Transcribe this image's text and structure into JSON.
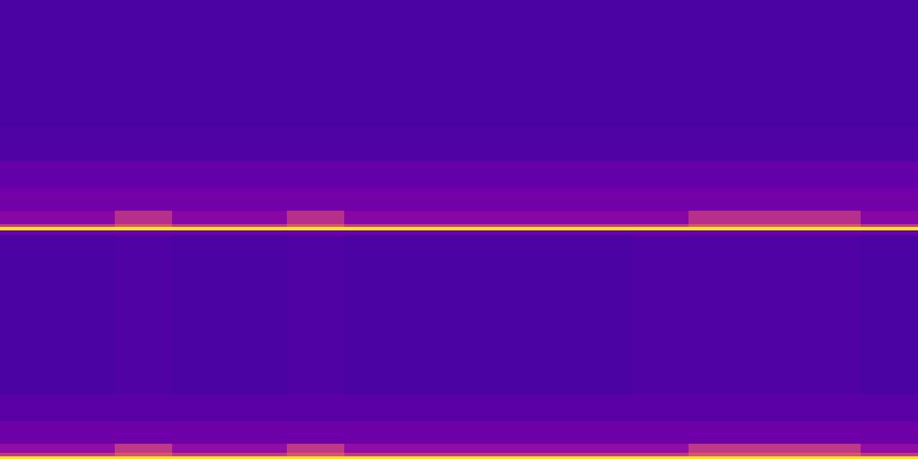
{
  "chart_data": {
    "type": "heatmap",
    "xlim": [
      0,
      1024
    ],
    "ylim": [
      0,
      512
    ],
    "tick_labels": false,
    "color": "plasma",
    "zlim": [
      0,
      1
    ],
    "x_edges": [
      0,
      64,
      128,
      192,
      256,
      320,
      384,
      448,
      512,
      576,
      640,
      704,
      768,
      832,
      896,
      960,
      1024
    ],
    "y_edges": [
      0,
      3,
      7,
      17,
      42,
      72,
      250,
      255,
      259,
      262,
      277,
      302,
      332,
      372,
      512
    ],
    "values": [
      [
        0.95,
        0.95,
        0.95,
        0.95,
        0.95,
        0.95,
        0.95,
        0.95,
        0.95,
        0.95,
        0.95,
        0.95,
        0.95,
        0.95,
        0.95,
        0.95
      ],
      [
        0.45,
        0.45,
        0.55,
        0.45,
        0.45,
        0.55,
        0.45,
        0.45,
        0.45,
        0.45,
        0.45,
        0.45,
        0.55,
        0.55,
        0.55,
        0.45
      ],
      [
        0.3,
        0.3,
        0.45,
        0.3,
        0.3,
        0.45,
        0.3,
        0.3,
        0.3,
        0.3,
        0.3,
        0.3,
        0.45,
        0.45,
        0.45,
        0.3
      ],
      [
        0.21,
        0.21,
        0.21,
        0.21,
        0.21,
        0.21,
        0.21,
        0.21,
        0.21,
        0.21,
        0.21,
        0.21,
        0.21,
        0.21,
        0.21,
        0.21
      ],
      [
        0.16,
        0.16,
        0.16,
        0.16,
        0.16,
        0.16,
        0.16,
        0.16,
        0.16,
        0.16,
        0.16,
        0.16,
        0.16,
        0.16,
        0.16,
        0.16
      ],
      [
        0.12,
        0.12,
        0.14,
        0.12,
        0.12,
        0.14,
        0.12,
        0.12,
        0.12,
        0.12,
        0.12,
        0.14,
        0.14,
        0.14,
        0.14,
        0.12
      ],
      [
        0.2,
        0.2,
        0.2,
        0.2,
        0.2,
        0.2,
        0.2,
        0.2,
        0.2,
        0.2,
        0.2,
        0.2,
        0.2,
        0.2,
        0.2,
        0.2
      ],
      [
        0.95,
        0.95,
        0.95,
        0.95,
        0.95,
        0.95,
        0.95,
        0.95,
        0.95,
        0.95,
        0.95,
        0.95,
        0.95,
        0.95,
        0.95,
        0.95
      ],
      [
        0.45,
        0.45,
        0.55,
        0.45,
        0.45,
        0.55,
        0.45,
        0.45,
        0.45,
        0.45,
        0.45,
        0.45,
        0.55,
        0.55,
        0.55,
        0.45
      ],
      [
        0.27,
        0.27,
        0.42,
        0.27,
        0.27,
        0.42,
        0.27,
        0.27,
        0.27,
        0.27,
        0.27,
        0.27,
        0.42,
        0.42,
        0.42,
        0.27
      ],
      [
        0.22,
        0.22,
        0.22,
        0.22,
        0.22,
        0.22,
        0.22,
        0.22,
        0.22,
        0.22,
        0.22,
        0.22,
        0.22,
        0.22,
        0.22,
        0.22
      ],
      [
        0.18,
        0.18,
        0.18,
        0.18,
        0.18,
        0.18,
        0.18,
        0.18,
        0.18,
        0.18,
        0.18,
        0.18,
        0.18,
        0.18,
        0.18,
        0.18
      ],
      [
        0.14,
        0.14,
        0.14,
        0.14,
        0.14,
        0.14,
        0.14,
        0.14,
        0.14,
        0.14,
        0.14,
        0.14,
        0.14,
        0.14,
        0.14,
        0.14
      ],
      [
        0.12,
        0.12,
        0.12,
        0.12,
        0.12,
        0.12,
        0.12,
        0.12,
        0.12,
        0.12,
        0.12,
        0.12,
        0.12,
        0.12,
        0.12,
        0.12
      ]
    ]
  }
}
